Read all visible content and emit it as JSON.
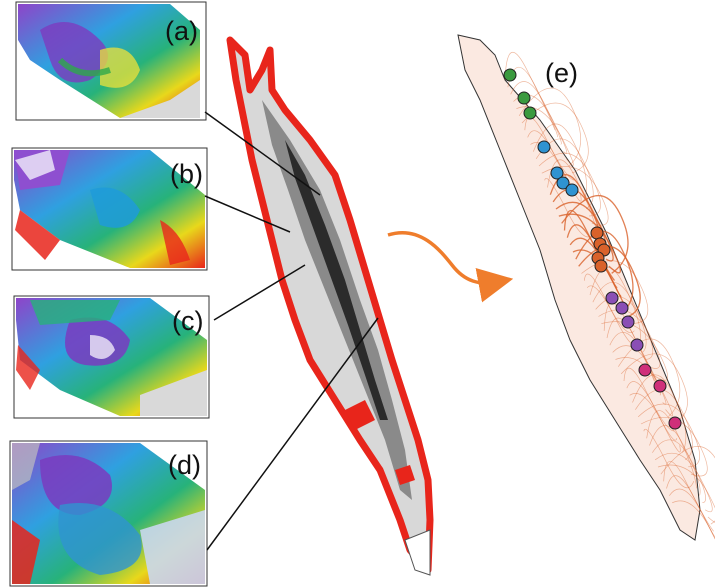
{
  "figure": {
    "panels": [
      {
        "id": "a",
        "label": "(a)",
        "content": "zoomed satellite chlorophyll map, northern segment"
      },
      {
        "id": "b",
        "label": "(b)",
        "content": "zoomed satellite chlorophyll map"
      },
      {
        "id": "c",
        "label": "(c)",
        "content": "zoomed satellite chlorophyll map"
      },
      {
        "id": "d",
        "label": "(d)",
        "content": "zoomed satellite chlorophyll map, southern segment"
      },
      {
        "id": "e",
        "label": "(e)",
        "content": "drifter trajectories with coloured station markers"
      }
    ],
    "colors": {
      "bathymetry_dark": "#2b2b2b",
      "bathymetry_light": "#e6e6e6",
      "coastal_highlight": "#e8251b",
      "arrow": "#ef7d2c",
      "trajectories": "#d9622b",
      "leader_line": "#111111"
    },
    "markers": {
      "groups": [
        {
          "color": "#3a9a3f",
          "count": 3
        },
        {
          "color": "#2f93d1",
          "count": 4
        },
        {
          "color": "#d9622b",
          "count": 5
        },
        {
          "color": "#8a4fb5",
          "count": 4
        },
        {
          "color": "#cf2f7a",
          "count": 3
        }
      ]
    }
  }
}
